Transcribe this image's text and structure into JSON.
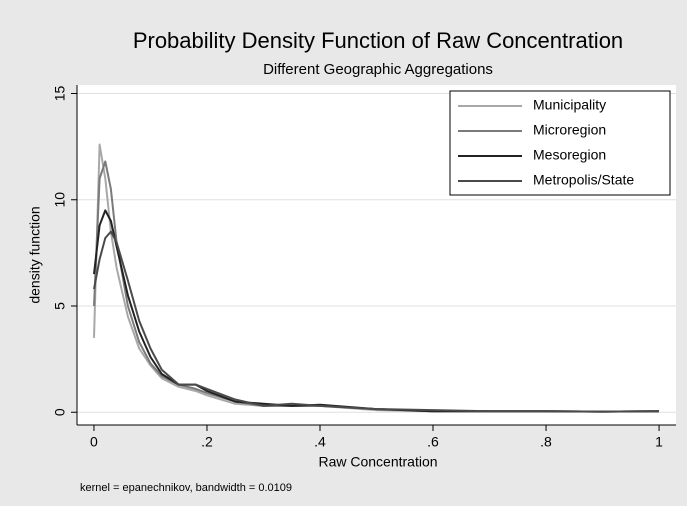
{
  "chart_data": {
    "type": "line",
    "title": "Probability Density Function of Raw Concentration",
    "subtitle": "Different Geographic Aggregations",
    "x_label": "Raw Concentration",
    "y_label": "density function",
    "note": "kernel = epanechnikov, bandwidth = 0.0109",
    "x": [
      0,
      0.01,
      0.02,
      0.03,
      0.04,
      0.06,
      0.08,
      0.1,
      0.12,
      0.15,
      0.18,
      0.2,
      0.25,
      0.3,
      0.35,
      0.4,
      0.5,
      0.6,
      0.7,
      0.8,
      0.9,
      1.0
    ],
    "series": [
      {
        "name": "Municipality",
        "color": "#a8a8a8",
        "values": [
          3.5,
          12.6,
          11.0,
          8.5,
          6.8,
          4.5,
          3.0,
          2.2,
          1.6,
          1.2,
          1.0,
          0.8,
          0.4,
          0.3,
          0.3,
          0.3,
          0.1,
          0.05,
          0.05,
          0.05,
          0.03,
          0.05
        ]
      },
      {
        "name": "Microregion",
        "color": "#7a7a7a",
        "values": [
          5.0,
          11.0,
          11.8,
          10.5,
          8.0,
          5.0,
          3.3,
          2.3,
          1.7,
          1.3,
          1.1,
          0.9,
          0.5,
          0.3,
          0.3,
          0.3,
          0.15,
          0.05,
          0.05,
          0.05,
          0.03,
          0.05
        ]
      },
      {
        "name": "Mesoregion",
        "color": "#222222",
        "values": [
          6.5,
          8.8,
          9.5,
          9.0,
          7.8,
          5.5,
          3.8,
          2.6,
          1.8,
          1.3,
          1.3,
          1.0,
          0.5,
          0.4,
          0.3,
          0.35,
          0.15,
          0.05,
          0.05,
          0.05,
          0.03,
          0.05
        ]
      },
      {
        "name": "Metropolis/State",
        "color": "#4a4a4a",
        "values": [
          5.8,
          7.2,
          8.2,
          8.5,
          8.0,
          6.2,
          4.3,
          3.0,
          2.0,
          1.3,
          1.3,
          1.1,
          0.6,
          0.3,
          0.4,
          0.3,
          0.15,
          0.1,
          0.05,
          0.05,
          0.03,
          0.05
        ]
      }
    ],
    "xlim": [
      -0.03,
      1.03
    ],
    "ylim": [
      -0.6,
      15.4
    ],
    "xticks": [
      0,
      {
        "value": 0.2,
        "label": ".2"
      },
      {
        "value": 0.4,
        "label": ".4"
      },
      {
        "value": 0.6,
        "label": ".6"
      },
      {
        "value": 0.8,
        "label": ".8"
      },
      1
    ],
    "yticks": [
      0,
      5,
      10,
      15
    ],
    "grid": true,
    "legend_position": "top-right"
  }
}
